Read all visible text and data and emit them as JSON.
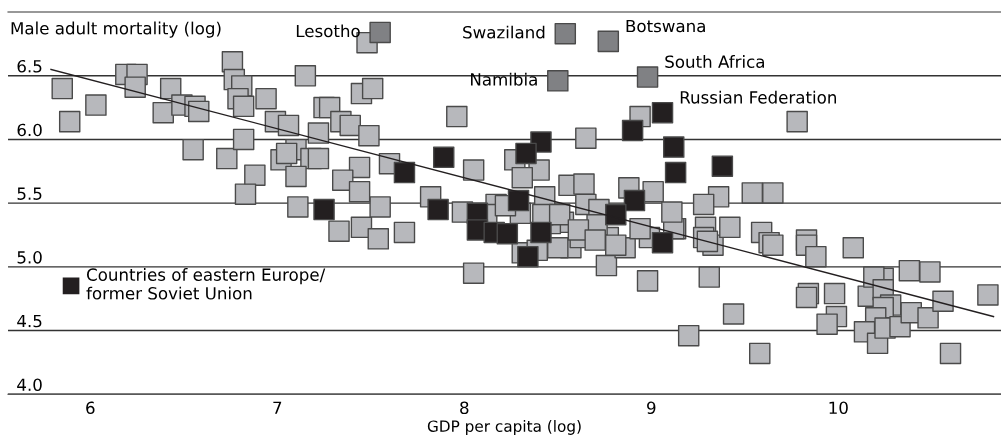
{
  "chart_data": {
    "type": "scatter",
    "xlabel": "GDP per capita (log)",
    "ylabel": "Male adult mortality (log)",
    "xlim": [
      5.56,
      10.87
    ],
    "ylim": [
      4.0,
      7.0
    ],
    "xticks": [
      6,
      7,
      8,
      9,
      10
    ],
    "yticks": [
      {
        "value": 4.0,
        "label": "4.0"
      },
      {
        "value": 4.5,
        "label": "4.5"
      },
      {
        "value": 5.0,
        "label": "5.0"
      },
      {
        "value": 5.5,
        "label": "5.5"
      },
      {
        "value": 6.0,
        "label": "6.0"
      },
      {
        "value": 6.5,
        "label": "6.5"
      }
    ],
    "grid": "y",
    "marker": "square",
    "legend": "lower left",
    "series": [
      {
        "color": "#b7b8bc",
        "x": [
          5.85,
          5.89,
          6.03,
          6.19,
          6.25,
          6.24,
          6.39,
          6.43,
          6.49,
          6.56,
          6.58,
          6.55,
          6.73,
          6.76,
          6.77,
          6.81,
          6.79,
          6.82,
          6.94,
          6.82,
          6.88,
          6.83,
          6.99,
          7.06,
          7.15,
          7.1,
          7.18,
          7.02,
          7.05,
          7.22,
          7.22,
          7.1,
          7.11,
          7.33,
          7.45,
          7.54,
          7.68,
          7.55,
          7.48,
          7.25,
          7.45,
          7.51,
          7.28,
          7.34,
          7.39,
          7.49,
          7.96,
          8.05,
          7.6,
          7.44,
          7.35,
          7.44,
          8.27,
          8.4,
          8.31,
          8.65,
          8.94,
          9.78,
          9.54,
          9.65,
          9.36,
          9.28,
          7.82,
          8.17,
          8.56,
          8.64,
          8.43,
          8.65,
          8.88,
          9.01,
          8.72,
          8.05,
          8.76,
          8.98,
          8.31,
          8.39,
          8.57,
          8.5,
          8.62,
          8.77,
          8.86,
          8.99,
          8.3,
          8.53,
          8.46,
          8.71,
          9.13,
          9.29,
          9.33,
          9.59,
          9.63,
          9.65,
          9.83,
          9.83,
          10.08,
          9.28,
          10.38,
          10.24,
          9.31,
          9.44,
          9.2,
          9.58,
          9.84,
          9.83,
          9.98,
          9.99,
          9.94,
          10.16,
          10.19,
          10.24,
          10.28,
          10.24,
          10.2,
          10.14,
          10.21,
          10.25,
          10.33,
          10.39,
          10.48,
          10.56,
          10.49,
          10.8,
          10.6,
          9.12,
          9.3,
          9.42,
          9.88,
          7.99,
          8.12,
          8.22,
          8.42,
          8.51,
          8.61,
          8.7,
          8.81,
          8.94,
          9.11
        ],
        "values": [
          6.4,
          6.14,
          6.27,
          6.51,
          6.51,
          6.41,
          6.21,
          6.4,
          6.27,
          6.26,
          6.22,
          5.92,
          5.85,
          6.61,
          6.47,
          6.42,
          6.32,
          6.26,
          6.32,
          6.0,
          5.72,
          5.57,
          6.14,
          6.11,
          6.5,
          5.92,
          5.85,
          5.84,
          5.89,
          5.85,
          6.05,
          5.71,
          5.47,
          5.28,
          5.31,
          5.22,
          5.27,
          5.47,
          6.76,
          6.25,
          6.36,
          6.4,
          6.25,
          6.14,
          6.11,
          6.03,
          6.18,
          5.76,
          5.81,
          5.78,
          5.68,
          5.59,
          5.84,
          5.76,
          5.7,
          6.01,
          6.18,
          6.14,
          5.58,
          5.58,
          5.55,
          5.49,
          5.55,
          5.49,
          5.64,
          5.65,
          5.55,
          5.49,
          5.62,
          5.59,
          5.45,
          4.95,
          5.01,
          4.89,
          5.11,
          5.13,
          5.15,
          5.15,
          5.23,
          5.23,
          5.15,
          5.23,
          5.42,
          5.35,
          5.34,
          5.33,
          5.3,
          5.31,
          5.17,
          5.27,
          5.19,
          5.17,
          5.21,
          5.17,
          5.15,
          5.23,
          4.97,
          4.91,
          4.92,
          4.63,
          4.46,
          4.32,
          4.79,
          4.76,
          4.79,
          4.61,
          4.55,
          4.77,
          4.92,
          4.82,
          4.7,
          4.68,
          4.6,
          4.49,
          4.4,
          4.52,
          4.53,
          4.64,
          4.6,
          4.73,
          4.96,
          4.78,
          4.32,
          5.3,
          5.2,
          5.31,
          5.08,
          5.43,
          5.41,
          5.48,
          5.41,
          5.41,
          5.29,
          5.21,
          5.17,
          5.3,
          5.43
        ]
      },
      {
        "color": "#808184",
        "x": [
          7.55,
          8.54,
          8.77,
          8.5,
          8.98
        ],
        "values": [
          6.84,
          6.83,
          6.77,
          6.46,
          6.49
        ]
      },
      {
        "name": "Countries of eastern Europe/\nformer Soviet Union",
        "color": "#231f20",
        "x": [
          9.06,
          7.89,
          7.68,
          8.41,
          8.33,
          8.9,
          9.12,
          9.13,
          9.38,
          7.25,
          7.86,
          8.29,
          8.07,
          8.91,
          8.81,
          8.07,
          8.16,
          8.23,
          8.41,
          8.34,
          9.06
        ],
        "values": [
          6.21,
          5.86,
          5.74,
          5.98,
          5.89,
          6.07,
          5.94,
          5.74,
          5.79,
          5.45,
          5.45,
          5.52,
          5.42,
          5.52,
          5.41,
          5.29,
          5.27,
          5.26,
          5.27,
          5.08,
          5.19
        ]
      },
      {
        "type": "line",
        "marker": "none",
        "color": "#231f20",
        "x": [
          5.79,
          10.83
        ],
        "values": [
          6.55,
          4.61
        ]
      }
    ],
    "annotations": [
      {
        "text": "Lesotho",
        "x": 7.55,
        "y": 6.84
      },
      {
        "text": "Swaziland",
        "x": 8.54,
        "y": 6.83
      },
      {
        "text": "Botswana",
        "x": 8.77,
        "y": 6.77
      },
      {
        "text": "South Africa",
        "x": 8.98,
        "y": 6.49
      },
      {
        "text": "Namibia",
        "x": 8.5,
        "y": 6.46
      },
      {
        "text": "Russian Federation",
        "x": 9.06,
        "y": 6.21
      }
    ]
  }
}
